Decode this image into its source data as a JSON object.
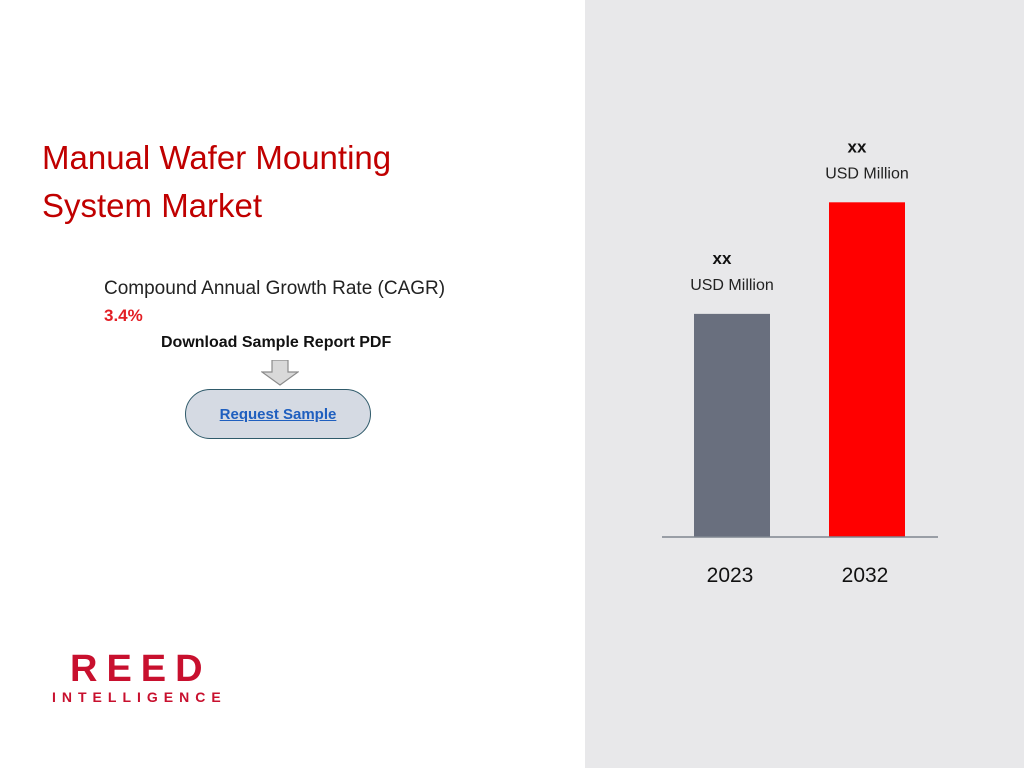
{
  "title_lines": [
    "Manual Wafer Mounting",
    "System Market"
  ],
  "cagr": {
    "label": "Compound Annual Growth Rate (CAGR)",
    "value": "3.4%"
  },
  "download_label": "Download Sample Report PDF",
  "request_button": {
    "label": "Request Sample"
  },
  "logo": {
    "main": "REED",
    "sub": "INTELLIGENCE"
  },
  "colors": {
    "accent": "#c00000",
    "bar_2023": "#696f7e",
    "bar_2032": "#ff0000",
    "panel_bg": "#e8e8ea"
  },
  "icons": {
    "arrow": "down-arrow-icon"
  },
  "chart_data": {
    "type": "bar",
    "categories": [
      "2023",
      "2032"
    ],
    "values": [
      1.0,
      1.5
    ],
    "value_labels": [
      "xx",
      "xx"
    ],
    "unit_labels": [
      "USD Million",
      "USD Million"
    ],
    "colors": [
      "#696f7e",
      "#ff0000"
    ],
    "ylim": [
      0,
      1.6
    ],
    "grid": false,
    "title": "",
    "xlabel": "",
    "ylabel": ""
  }
}
